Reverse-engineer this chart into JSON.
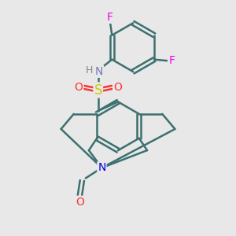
{
  "bg_color": "#e8e8e8",
  "bond_color": "#3d7070",
  "bond_width": 1.8,
  "atom_colors": {
    "F": "#ee00ee",
    "N_amine": "#7777bb",
    "N_ring": "#0000ee",
    "S": "#cccc00",
    "O": "#ff3333",
    "H": "#888888"
  },
  "fs": 10
}
